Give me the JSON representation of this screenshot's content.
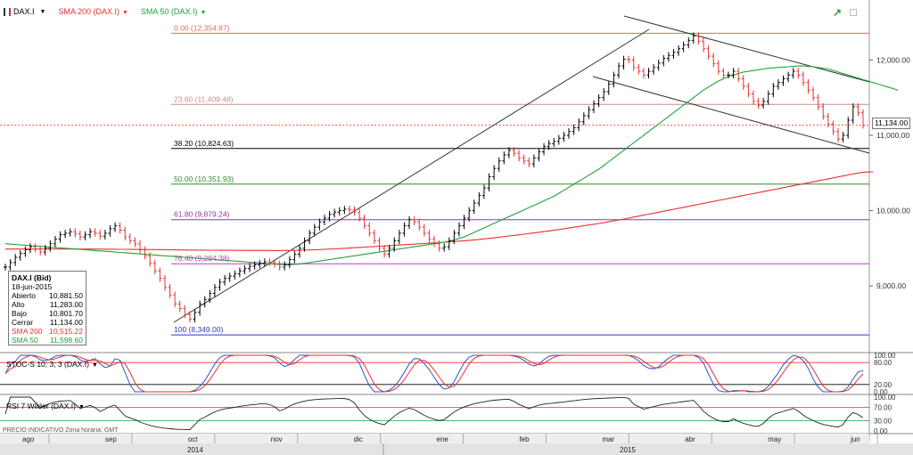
{
  "toolbar": {
    "symbol": "DAX.I",
    "sma200_label": "SMA 200 (DAX.I)",
    "sma50_label": "SMA 50 (DAX.I)",
    "colors": {
      "sma200": "#e8312f",
      "sma50": "#1fa33a",
      "price": "#000000"
    }
  },
  "info_box": {
    "title": "DAX.I (Bid)",
    "date": "18-jun-2015",
    "rows": [
      {
        "label": "Abierto",
        "value": "10,881.50"
      },
      {
        "label": "Alto",
        "value": "11,283.00"
      },
      {
        "label": "Bajo",
        "value": "10,801.70"
      },
      {
        "label": "Cerrar",
        "value": "11,134.00"
      },
      {
        "label": "SMA 200",
        "value": "10,515.22"
      },
      {
        "label": "SMA 50",
        "value": "11,598.60"
      }
    ]
  },
  "last_price_tag": "11,134.00",
  "stoch_label": "STOC-S 10; 3; 3 (DAX.I)",
  "rsi_label": "RSI 7 Wilder (DAX.I)",
  "footer_note": "PRECIO INDICATIVO  Zona horaria: GMT",
  "years": [
    "2014",
    "2015"
  ],
  "chart_data": {
    "type": "line",
    "title": "",
    "y_ticks": [
      9000,
      10000,
      11000,
      12000
    ],
    "y_tick_labels": [
      "9,000.00",
      "10,000.00",
      "11,000.00",
      "12,000.00"
    ],
    "ylim": [
      8150,
      12560
    ],
    "fib_levels": [
      {
        "label": "0.00 (12,354.87)",
        "value": 12354.87,
        "color": "#e06666"
      },
      {
        "label": "23.60 (11,409.48)",
        "value": 11409.48,
        "color": "#c09090"
      },
      {
        "label": "38.20 (10,824.63)",
        "value": 10824.63,
        "color": "#000000"
      },
      {
        "label": "50.00 (10,351.93)",
        "value": 10351.93,
        "color": "#2e8b2e"
      },
      {
        "label": "61.80 (9,879.24)",
        "value": 9879.24,
        "color": "#993399"
      },
      {
        "label": "76.40 (9,294.38)",
        "value": 9294.38,
        "color": "#cc33cc"
      },
      {
        "label": "100 (8,349.00)",
        "value": 8349.0,
        "color": "#3333cc"
      }
    ],
    "month_labels": [
      "ago",
      "sep",
      "oct",
      "nov",
      "dic",
      "ene",
      "feb",
      "mar",
      "abr",
      "may",
      "jun"
    ],
    "close": [
      9250,
      9310,
      9380,
      9430,
      9480,
      9520,
      9490,
      9450,
      9500,
      9560,
      9620,
      9680,
      9700,
      9720,
      9690,
      9650,
      9680,
      9720,
      9700,
      9660,
      9700,
      9760,
      9800,
      9740,
      9650,
      9600,
      9560,
      9480,
      9400,
      9300,
      9200,
      9100,
      8980,
      8880,
      8760,
      8700,
      8620,
      8560,
      8650,
      8760,
      8820,
      8900,
      8980,
      9050,
      9100,
      9130,
      9160,
      9200,
      9230,
      9260,
      9280,
      9300,
      9320,
      9310,
      9290,
      9250,
      9280,
      9350,
      9420,
      9500,
      9600,
      9700,
      9780,
      9850,
      9900,
      9950,
      9980,
      10000,
      10020,
      10010,
      9980,
      9900,
      9800,
      9700,
      9600,
      9500,
      9420,
      9500,
      9600,
      9700,
      9800,
      9880,
      9850,
      9780,
      9700,
      9620,
      9560,
      9500,
      9520,
      9600,
      9700,
      9800,
      9900,
      10000,
      10100,
      10200,
      10300,
      10450,
      10560,
      10660,
      10740,
      10800,
      10760,
      10700,
      10660,
      10620,
      10700,
      10780,
      10850,
      10890,
      10920,
      10960,
      11000,
      11050,
      11100,
      11180,
      11260,
      11340,
      11420,
      11500,
      11580,
      11680,
      11800,
      11920,
      12010,
      12000,
      11900,
      11850,
      11800,
      11850,
      11900,
      11960,
      12020,
      12060,
      12100,
      12150,
      12200,
      12260,
      12320,
      12250,
      12150,
      12050,
      11950,
      11850,
      11800,
      11800,
      11850,
      11750,
      11650,
      11550,
      11450,
      11400,
      11450,
      11550,
      11650,
      11700,
      11750,
      11800,
      11850,
      11800,
      11700,
      11600,
      11500,
      11380,
      11250,
      11150,
      11050,
      10950,
      11000,
      11200,
      11380,
      11300,
      11134
    ],
    "sma200": [
      9490,
      9490,
      9490,
      9490,
      9490,
      9490,
      9490,
      9490,
      9490,
      9490,
      9490,
      9490,
      9490,
      9490,
      9490,
      9489,
      9489,
      9489,
      9489,
      9488,
      9488,
      9487,
      9487,
      9486,
      9486,
      9485,
      9485,
      9484,
      9484,
      9483,
      9482,
      9482,
      9481,
      9480,
      9479,
      9478,
      9477,
      9476,
      9475,
      9475,
      9475,
      9474,
      9474,
      9473,
      9473,
      9473,
      9472,
      9472,
      9472,
      9471,
      9471,
      9471,
      9471,
      9471,
      9470,
      9470,
      9471,
      9471,
      9472,
      9474,
      9476,
      9478,
      9481,
      9483,
      9486,
      9489,
      9492,
      9495,
      9499,
      9503,
      9507,
      9511,
      9515,
      9519,
      9523,
      9527,
      9531,
      9535,
      9539,
      9543,
      9547,
      9551,
      9555,
      9559,
      9563,
      9567,
      9571,
      9575,
      9580,
      9585,
      9590,
      9595,
      9600,
      9605,
      9611,
      9617,
      9624,
      9631,
      9639,
      9647,
      9655,
      9663,
      9671,
      9679,
      9687,
      9695,
      9703,
      9712,
      9721,
      9730,
      9739,
      9749,
      9759,
      9769,
      9779,
      9789,
      9799,
      9809,
      9819,
      9829,
      9840,
      9851,
      9863,
      9875,
      9888,
      9901,
      9914,
      9927,
      9940,
      9953,
      9966,
      9979,
      9992,
      10005,
      10018,
      10031,
      10044,
      10057,
      10070,
      10083,
      10096,
      10109,
      10122,
      10135,
      10148,
      10161,
      10174,
      10187,
      10200,
      10213,
      10226,
      10239,
      10252,
      10265,
      10278,
      10291,
      10304,
      10317,
      10330,
      10343,
      10356,
      10369,
      10382,
      10395,
      10408,
      10421,
      10434,
      10447,
      10460,
      10473,
      10486,
      10499,
      10508,
      10512,
      10515
    ],
    "sma50": [
      9560,
      9555,
      9550,
      9545,
      9540,
      9535,
      9530,
      9525,
      9520,
      9515,
      9510,
      9505,
      9500,
      9495,
      9490,
      9485,
      9480,
      9475,
      9470,
      9465,
      9460,
      9455,
      9450,
      9445,
      9440,
      9435,
      9430,
      9425,
      9420,
      9415,
      9410,
      9405,
      9400,
      9395,
      9390,
      9385,
      9380,
      9375,
      9370,
      9365,
      9360,
      9355,
      9350,
      9345,
      9340,
      9335,
      9330,
      9325,
      9320,
      9315,
      9310,
      9305,
      9300,
      9295,
      9290,
      9285,
      9280,
      9280,
      9285,
      9290,
      9300,
      9310,
      9320,
      9330,
      9340,
      9350,
      9360,
      9370,
      9380,
      9390,
      9400,
      9410,
      9420,
      9430,
      9440,
      9450,
      9460,
      9470,
      9480,
      9490,
      9500,
      9510,
      9520,
      9530,
      9540,
      9550,
      9560,
      9570,
      9580,
      9595,
      9610,
      9630,
      9650,
      9680,
      9710,
      9740,
      9770,
      9800,
      9830,
      9860,
      9890,
      9920,
      9950,
      9980,
      10010,
      10040,
      10070,
      10100,
      10130,
      10160,
      10190,
      10230,
      10270,
      10310,
      10350,
      10390,
      10430,
      10470,
      10510,
      10550,
      10600,
      10650,
      10700,
      10750,
      10800,
      10850,
      10900,
      10950,
      11000,
      11050,
      11100,
      11150,
      11200,
      11250,
      11300,
      11350,
      11400,
      11450,
      11500,
      11550,
      11600,
      11640,
      11680,
      11720,
      11750,
      11780,
      11800,
      11820,
      11840,
      11850,
      11860,
      11870,
      11880,
      11890,
      11895,
      11900,
      11905,
      11910,
      11915,
      11920,
      11920,
      11915,
      11910,
      11900,
      11890,
      11880,
      11860,
      11840,
      11820,
      11800,
      11780,
      11760,
      11740,
      11720,
      11700,
      11680,
      11660,
      11640,
      11620,
      11598
    ]
  }
}
